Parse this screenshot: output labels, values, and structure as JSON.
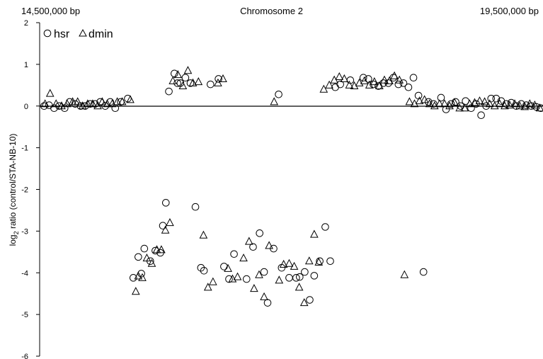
{
  "chart_data": {
    "type": "scatter",
    "title": "Chromosome 2",
    "x_start_label": "14,500,000 bp",
    "x_end_label": "19,500,000 bp",
    "ylabel_main": "log",
    "ylabel_sub": "2",
    "ylabel_rest": " ratio (control/STA-NB-10)",
    "ylim": [
      -6,
      2
    ],
    "yticks": [
      "2",
      "1",
      "0",
      "-1",
      "-2",
      "-3",
      "-4",
      "-5",
      "-6"
    ],
    "xlim": [
      0,
      100
    ],
    "legend_position": "top-left",
    "series": [
      {
        "name": "hsr",
        "marker": "circle",
        "x": [
          0.6,
          1.6,
          2.6,
          3.6,
          4.7,
          5.7,
          6.8,
          7.9,
          8.8,
          9.8,
          10.8,
          11.8,
          12.8,
          13.8,
          14.8,
          15.9,
          17.3,
          18.4,
          19.4,
          20.0,
          20.6,
          21.8,
          22.8,
          23.8,
          24.3,
          24.9,
          25.5,
          26.6,
          27.2,
          27.8,
          28.8,
          29.8,
          30.8,
          31.9,
          32.5,
          33.8,
          35.4,
          36.5,
          37.5,
          38.5,
          41.0,
          42.3,
          43.6,
          44.5,
          45.2,
          46.4,
          47.4,
          48.0,
          49.5,
          50.9,
          51.6,
          52.6,
          53.6,
          54.5,
          55.6,
          56.7,
          57.7,
          58.7,
          59.7,
          61.7,
          64.3,
          65.3,
          66.3,
          67.3,
          68.3,
          69.3,
          70.3,
          71.3,
          72.3,
          73.3,
          74.3,
          75.3,
          76.3,
          77.3,
          78.3,
          79.8,
          80.8,
          81.8,
          82.7,
          83.7,
          84.7,
          85.8,
          86.8,
          87.8,
          88.8,
          89.8,
          90.8,
          91.8,
          92.8,
          93.8,
          94.8,
          95.8,
          96.8,
          97.8,
          98.8,
          99.7
        ],
        "y": [
          0.0,
          0.02,
          -0.05,
          0.0,
          -0.05,
          0.1,
          0.05,
          0.0,
          0.0,
          0.05,
          0.05,
          0.1,
          0.0,
          0.1,
          -0.05,
          0.1,
          0.18,
          -4.12,
          -3.62,
          -4.02,
          -3.42,
          -3.72,
          -3.47,
          -3.52,
          -2.87,
          -2.32,
          0.35,
          0.78,
          0.55,
          0.55,
          0.68,
          0.55,
          -2.42,
          -3.88,
          -3.95,
          0.52,
          0.65,
          -3.85,
          -4.15,
          -3.55,
          -4.15,
          -3.38,
          -3.05,
          -3.98,
          -4.72,
          -3.42,
          0.28,
          -3.88,
          -4.12,
          -4.12,
          -4.1,
          -3.98,
          -4.65,
          -4.07,
          -3.72,
          -2.9,
          -3.72,
          0.45,
          0.52,
          0.62,
          0.68,
          0.65,
          0.52,
          0.48,
          0.55,
          0.55,
          0.68,
          0.52,
          0.55,
          0.45,
          0.68,
          0.25,
          -3.98,
          0.1,
          0.05,
          0.2,
          -0.08,
          0.05,
          0.1,
          0.0,
          0.12,
          -0.05,
          0.05,
          -0.22,
          0.0,
          0.18,
          0.18,
          0.12,
          0.05,
          0.08,
          0.0,
          0.05,
          0.02,
          0.0,
          -0.02,
          -0.05
        ],
        "_xfix": "x values distinct per point (0-100 span)"
      },
      {
        "name": "dmin",
        "marker": "triangle",
        "x": [
          0.8,
          1.8,
          3.0,
          4.1,
          5.2,
          6.3,
          7.3,
          8.3,
          9.3,
          10.3,
          11.3,
          12.2,
          13.2,
          14.2,
          15.2,
          16.2,
          17.8,
          18.9,
          19.4,
          20.2,
          21.1,
          22.1,
          23.1,
          24.0,
          24.8,
          25.7,
          26.3,
          27.3,
          28.3,
          29.3,
          30.3,
          31.4,
          32.4,
          33.3,
          34.3,
          35.3,
          36.3,
          37.3,
          38.2,
          39.2,
          40.4,
          41.5,
          42.5,
          43.5,
          44.5,
          45.5,
          46.5,
          47.5,
          48.4,
          49.5,
          50.5,
          51.5,
          52.5,
          53.5,
          54.5,
          55.4,
          56.4,
          57.5,
          58.5,
          59.5,
          60.5,
          61.5,
          62.5,
          63.5,
          64.5,
          65.5,
          66.5,
          67.5,
          68.5,
          69.5,
          70.5,
          71.5,
          72.5,
          73.5,
          74.5,
          75.5,
          76.5,
          77.5,
          78.5,
          79.5,
          80.5,
          81.5,
          82.5,
          83.5,
          84.5,
          85.5,
          86.5,
          87.5,
          88.5,
          89.5,
          90.5,
          91.5,
          92.5,
          93.5,
          94.5,
          95.5,
          96.5,
          97.5,
          98.5,
          99.5
        ],
        "y": [
          0.05,
          0.3,
          0.05,
          0.0,
          0.05,
          0.1,
          0.1,
          0.0,
          0.05,
          0.05,
          0.0,
          0.1,
          0.05,
          0.05,
          0.1,
          0.1,
          0.15,
          -4.45,
          -4.08,
          -4.12,
          -3.65,
          -3.78,
          -3.45,
          -3.45,
          -2.98,
          -2.8,
          0.6,
          0.75,
          0.48,
          0.85,
          0.55,
          0.58,
          -3.1,
          -4.35,
          -4.22,
          0.55,
          0.65,
          -3.9,
          -4.15,
          -4.1,
          -3.65,
          -3.25,
          -4.38,
          -4.05,
          -4.58,
          -3.35,
          0.1,
          -4.18,
          -3.8,
          -3.78,
          -3.85,
          -4.35,
          -4.72,
          -3.72,
          -3.08,
          -3.75,
          0.4,
          0.5,
          0.62,
          0.7,
          0.65,
          0.5,
          0.48,
          0.55,
          0.6,
          0.5,
          0.58,
          0.48,
          0.62,
          0.6,
          0.72,
          0.62,
          -4.05,
          0.1,
          0.05,
          0.12,
          0.15,
          0.05,
          0.0,
          0.05,
          0.05,
          0.0,
          0.08,
          -0.05,
          -0.05,
          0.05,
          0.08,
          0.12,
          0.1,
          0.05,
          0.0,
          0.05,
          0.0,
          0.02,
          0.05,
          0.0,
          -0.02,
          0.05,
          0.02,
          -0.05
        ],
        "_xfix": "x values distinct per point (0-100 span)"
      }
    ]
  }
}
